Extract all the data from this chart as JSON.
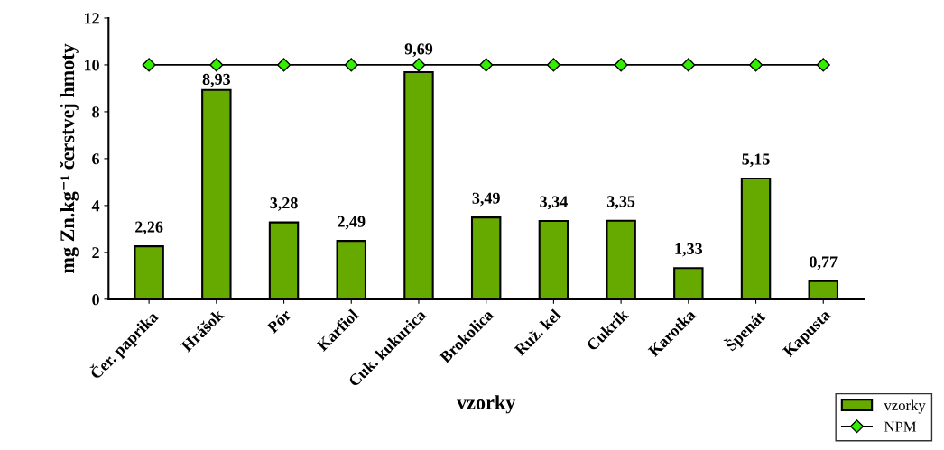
{
  "chart_data": {
    "type": "bar",
    "xlabel": "vzorky",
    "ylabel": "mg Zn.kg⁻¹ čerstvej hmoty",
    "categories": [
      "Čer. paprika",
      "Hrášok",
      "Pór",
      "Karfiol",
      "Cuk. kukurica",
      "Brokolica",
      "Ruž. kel",
      "Cukrík",
      "Karotka",
      "Špenát",
      "Kapusta"
    ],
    "series": [
      {
        "name": "vzorky",
        "color": "#66aa00",
        "values": [
          2.26,
          8.93,
          3.28,
          2.49,
          9.69,
          3.49,
          3.34,
          3.35,
          1.33,
          5.15,
          0.77
        ],
        "value_labels": [
          "2,26",
          "8,93",
          "3,28",
          "2,49",
          "9,69",
          "3,49",
          "3,34",
          "3,35",
          "1,33",
          "5,15",
          "0,77"
        ]
      },
      {
        "name": "NPM",
        "type": "line",
        "color": "#000000",
        "marker": "diamond",
        "values": [
          10,
          10,
          10,
          10,
          10,
          10,
          10,
          10,
          10,
          10,
          10
        ]
      }
    ],
    "ylim": [
      0,
      12
    ],
    "yticks": [
      0,
      2,
      4,
      6,
      8,
      10,
      12
    ],
    "legend": "bottom right"
  }
}
